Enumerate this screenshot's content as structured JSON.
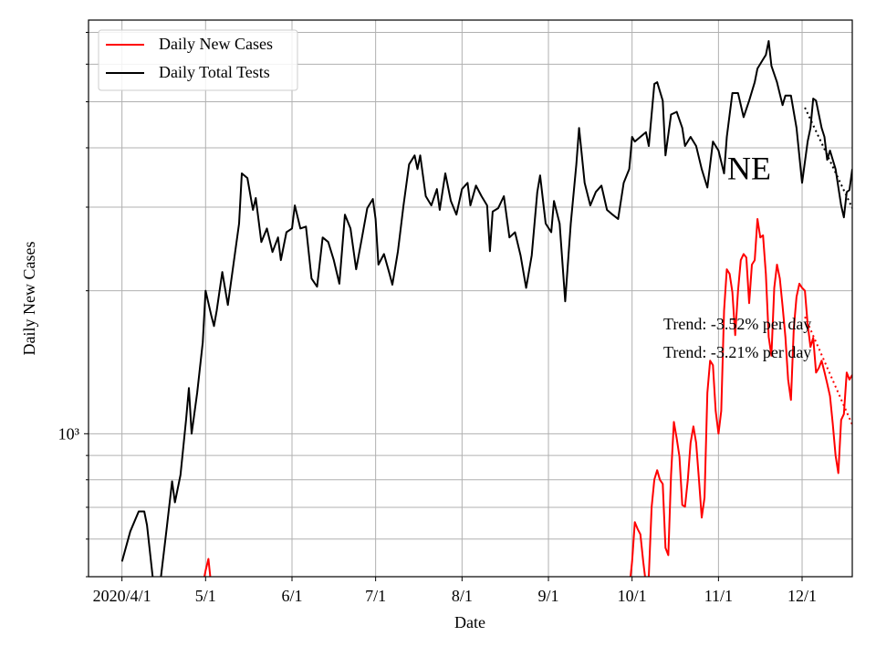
{
  "chart_data": {
    "type": "line",
    "xlabel": "Date",
    "ylabel": "Daily New Cases",
    "log_y": true,
    "grid": true,
    "legend": "upper left",
    "annotations": [
      "NE",
      "Trend: -3.52% per day",
      "Trend: -3.21% per day"
    ],
    "xlim": [
      "2020-03-20",
      "2020-12-19"
    ],
    "xticks": [
      {
        "value": "2020-04-01",
        "label": "2020/4/1"
      },
      {
        "value": "2020-05-01",
        "label": "5/1"
      },
      {
        "value": "2020-06-01",
        "label": "6/1"
      },
      {
        "value": "2020-07-01",
        "label": "7/1"
      },
      {
        "value": "2020-08-01",
        "label": "8/1"
      },
      {
        "value": "2020-09-01",
        "label": "9/1"
      },
      {
        "value": "2020-10-01",
        "label": "10/1"
      },
      {
        "value": "2020-11-01",
        "label": "11/1"
      },
      {
        "value": "2020-12-01",
        "label": "12/1"
      }
    ],
    "ylim": [
      500,
      7430
    ],
    "yticks": [
      {
        "value": 1000,
        "label": "10³"
      }
    ],
    "minor_yticks": [
      500,
      600,
      700,
      800,
      900,
      2000,
      3000,
      4000,
      5000,
      6000,
      7000
    ],
    "series": [
      {
        "name": "Daily New Cases",
        "color": "#ff0000",
        "x": [
          "2020-04-30",
          "2020-05-01",
          "2020-05-02",
          "2020-05-03",
          "2020-05-04",
          "2020-09-30",
          "2020-10-01",
          "2020-10-02",
          "2020-10-03",
          "2020-10-04",
          "2020-10-05",
          "2020-10-06",
          "2020-10-07",
          "2020-10-08",
          "2020-10-09",
          "2020-10-10",
          "2020-10-11",
          "2020-10-12",
          "2020-10-13",
          "2020-10-14",
          "2020-10-15",
          "2020-10-16",
          "2020-10-17",
          "2020-10-18",
          "2020-10-19",
          "2020-10-20",
          "2020-10-21",
          "2020-10-22",
          "2020-10-23",
          "2020-10-24",
          "2020-10-25",
          "2020-10-26",
          "2020-10-27",
          "2020-10-28",
          "2020-10-29",
          "2020-10-30",
          "2020-10-31",
          "2020-11-01",
          "2020-11-02",
          "2020-11-03",
          "2020-11-04",
          "2020-11-05",
          "2020-11-06",
          "2020-11-07",
          "2020-11-08",
          "2020-11-09",
          "2020-11-10",
          "2020-11-11",
          "2020-11-12",
          "2020-11-13",
          "2020-11-14",
          "2020-11-15",
          "2020-11-16",
          "2020-11-17",
          "2020-11-18",
          "2020-11-19",
          "2020-11-20",
          "2020-11-21",
          "2020-11-22",
          "2020-11-23",
          "2020-11-24",
          "2020-11-25",
          "2020-11-26",
          "2020-11-27",
          "2020-11-28",
          "2020-11-29",
          "2020-11-30",
          "2020-12-01",
          "2020-12-02",
          "2020-12-03",
          "2020-12-04",
          "2020-12-05",
          "2020-12-06",
          "2020-12-07",
          "2020-12-08",
          "2020-12-09",
          "2020-12-10",
          "2020-12-11",
          "2020-12-12",
          "2020-12-13",
          "2020-12-14",
          "2020-12-15",
          "2020-12-16",
          "2020-12-17",
          "2020-12-18",
          "2020-12-19"
        ],
        "values": [
          480,
          515,
          545,
          480,
          null,
          470,
          538,
          651,
          630,
          614,
          538,
          482,
          500,
          700,
          801,
          838,
          800,
          784,
          575,
          555,
          819,
          1059,
          978,
          895,
          708,
          702,
          801,
          957,
          1036,
          957,
          800,
          666,
          734,
          1220,
          1425,
          1394,
          1117,
          1000,
          1117,
          1817,
          2220,
          2170,
          1986,
          1613,
          2000,
          2320,
          2390,
          2350,
          1884,
          2270,
          2320,
          2832,
          2590,
          2617,
          2170,
          1600,
          1460,
          2028,
          2270,
          2123,
          1858,
          1600,
          1300,
          1178,
          1664,
          1942,
          2070,
          2028,
          2000,
          1700,
          1523,
          1592,
          1345,
          1375,
          1425,
          1350,
          1276,
          1200,
          1050,
          900,
          826,
          1069,
          1100,
          1345,
          1300,
          1330
        ]
      },
      {
        "name": "Daily Total Tests",
        "color": "#000000",
        "x": [
          "2020-04-01",
          "2020-04-04",
          "2020-04-07",
          "2020-04-09",
          "2020-04-10",
          "2020-04-12",
          "2020-04-13",
          "2020-04-14",
          "2020-04-15",
          "2020-04-17",
          "2020-04-19",
          "2020-04-20",
          "2020-04-22",
          "2020-04-24",
          "2020-04-25",
          "2020-04-26",
          "2020-04-28",
          "2020-04-30",
          "2020-05-01",
          "2020-05-03",
          "2020-05-04",
          "2020-05-05",
          "2020-05-07",
          "2020-05-09",
          "2020-05-11",
          "2020-05-13",
          "2020-05-14",
          "2020-05-16",
          "2020-05-18",
          "2020-05-19",
          "2020-05-21",
          "2020-05-23",
          "2020-05-25",
          "2020-05-27",
          "2020-05-28",
          "2020-05-30",
          "2020-06-01",
          "2020-06-02",
          "2020-06-04",
          "2020-06-06",
          "2020-06-08",
          "2020-06-10",
          "2020-06-12",
          "2020-06-14",
          "2020-06-16",
          "2020-06-18",
          "2020-06-20",
          "2020-06-22",
          "2020-06-24",
          "2020-06-26",
          "2020-06-28",
          "2020-06-30",
          "2020-07-01",
          "2020-07-02",
          "2020-07-04",
          "2020-07-06",
          "2020-07-07",
          "2020-07-09",
          "2020-07-11",
          "2020-07-13",
          "2020-07-15",
          "2020-07-16",
          "2020-07-17",
          "2020-07-19",
          "2020-07-21",
          "2020-07-23",
          "2020-07-24",
          "2020-07-26",
          "2020-07-28",
          "2020-07-30",
          "2020-08-01",
          "2020-08-03",
          "2020-08-04",
          "2020-08-06",
          "2020-08-08",
          "2020-08-10",
          "2020-08-11",
          "2020-08-12",
          "2020-08-14",
          "2020-08-16",
          "2020-08-18",
          "2020-08-20",
          "2020-08-22",
          "2020-08-24",
          "2020-08-26",
          "2020-08-28",
          "2020-08-29",
          "2020-08-31",
          "2020-09-02",
          "2020-09-03",
          "2020-09-05",
          "2020-09-07",
          "2020-09-09",
          "2020-09-11",
          "2020-09-12",
          "2020-09-14",
          "2020-09-16",
          "2020-09-18",
          "2020-09-20",
          "2020-09-22",
          "2020-09-24",
          "2020-09-26",
          "2020-09-28",
          "2020-09-30",
          "2020-10-01",
          "2020-10-02",
          "2020-10-04",
          "2020-10-06",
          "2020-10-07",
          "2020-10-09",
          "2020-10-10",
          "2020-10-12",
          "2020-10-13",
          "2020-10-15",
          "2020-10-17",
          "2020-10-19",
          "2020-10-20",
          "2020-10-22",
          "2020-10-24",
          "2020-10-26",
          "2020-10-28",
          "2020-10-30",
          "2020-11-01",
          "2020-11-03",
          "2020-11-04",
          "2020-11-06",
          "2020-11-08",
          "2020-11-10",
          "2020-11-12",
          "2020-11-14",
          "2020-11-15",
          "2020-11-17",
          "2020-11-18",
          "2020-11-19",
          "2020-11-20",
          "2020-11-22",
          "2020-11-24",
          "2020-11-25",
          "2020-11-27",
          "2020-11-29",
          "2020-12-01",
          "2020-12-03",
          "2020-12-04",
          "2020-12-05",
          "2020-12-06",
          "2020-12-08",
          "2020-12-09",
          "2020-12-10",
          "2020-12-11",
          "2020-12-13",
          "2020-12-15",
          "2020-12-16",
          "2020-12-17",
          "2020-12-18",
          "2020-12-19"
        ],
        "values": [
          538,
          623,
          686,
          686,
          642,
          500,
          460,
          470,
          500,
          628,
          794,
          717,
          819,
          1069,
          1248,
          1000,
          1220,
          1557,
          2000,
          1778,
          1686,
          1817,
          2190,
          1867,
          2270,
          2770,
          3533,
          3455,
          2960,
          3135,
          2534,
          2705,
          2413,
          2590,
          2320,
          2656,
          2705,
          3025,
          2705,
          2730,
          2123,
          2040,
          2590,
          2534,
          2320,
          2070,
          2893,
          2705,
          2220,
          2570,
          2985,
          3120,
          2832,
          2270,
          2390,
          2170,
          2060,
          2423,
          3025,
          3690,
          3855,
          3607,
          3855,
          3163,
          3025,
          3275,
          2960,
          3533,
          3090,
          2893,
          3275,
          3375,
          3025,
          3330,
          3163,
          3025,
          2423,
          2935,
          2985,
          3163,
          2590,
          2656,
          2373,
          2028,
          2373,
          3227,
          3500,
          2770,
          2656,
          3090,
          2770,
          1900,
          2770,
          3690,
          4405,
          3375,
          3025,
          3230,
          3330,
          2960,
          2893,
          2832,
          3375,
          3607,
          4217,
          4123,
          4217,
          4313,
          4035,
          5452,
          5497,
          5028,
          3855,
          4700,
          4762,
          4405,
          4035,
          4217,
          4035,
          3607,
          3300,
          4123,
          3946,
          3533,
          4217,
          5216,
          5216,
          4640,
          5028,
          5497,
          5875,
          6140,
          6275,
          6710,
          5950,
          5497,
          4920,
          5150,
          5150,
          4405,
          3375,
          4123,
          4405,
          5078,
          5028,
          4405,
          4217,
          3775,
          3946,
          3607,
          3025,
          2855,
          3227,
          3260,
          3607
        ]
      }
    ],
    "trends": [
      {
        "color": "#000000",
        "x": [
          "2020-12-02",
          "2020-12-19"
        ],
        "values": [
          4860,
          2985
        ]
      },
      {
        "color": "#ff0000",
        "x": [
          "2020-12-02",
          "2020-12-19"
        ],
        "values": [
          1763,
          1045
        ]
      }
    ]
  }
}
